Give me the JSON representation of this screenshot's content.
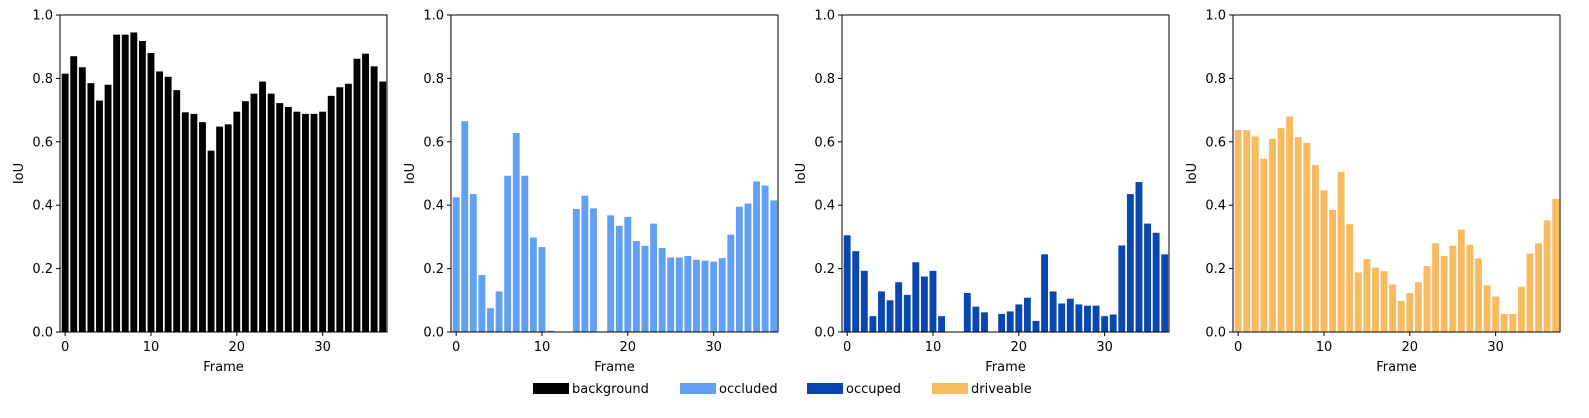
{
  "chart_data": [
    {
      "type": "bar",
      "name": "background",
      "color": "#000000",
      "xlabel": "Frame",
      "ylabel": "IoU",
      "ylim": [
        0,
        1.0
      ],
      "xlim": [
        -0.6,
        37.5
      ],
      "xticks": [
        "0",
        "10",
        "20",
        "30"
      ],
      "yticks": [
        "0.0",
        "0.2",
        "0.4",
        "0.6",
        "0.8",
        "1.0"
      ],
      "x": [
        0,
        1,
        2,
        3,
        4,
        5,
        6,
        7,
        8,
        9,
        10,
        11,
        12,
        13,
        14,
        15,
        16,
        17,
        18,
        19,
        20,
        21,
        22,
        23,
        24,
        25,
        26,
        27,
        28,
        29,
        30,
        31,
        32,
        33,
        34,
        35,
        36,
        37
      ],
      "values": [
        0.815,
        0.87,
        0.835,
        0.785,
        0.73,
        0.78,
        0.938,
        0.938,
        0.945,
        0.918,
        0.88,
        0.822,
        0.805,
        0.763,
        0.693,
        0.688,
        0.662,
        0.572,
        0.648,
        0.655,
        0.695,
        0.728,
        0.752,
        0.79,
        0.752,
        0.722,
        0.71,
        0.695,
        0.688,
        0.688,
        0.695,
        0.745,
        0.772,
        0.783,
        0.862,
        0.878,
        0.838,
        0.79
      ]
    },
    {
      "type": "bar",
      "name": "occluded",
      "color": "#62a0f5",
      "xlabel": "Frame",
      "ylabel": "IoU",
      "ylim": [
        0,
        1.0
      ],
      "xlim": [
        -0.6,
        37.5
      ],
      "xticks": [
        "0",
        "10",
        "20",
        "30"
      ],
      "yticks": [
        "0.0",
        "0.2",
        "0.4",
        "0.6",
        "0.8",
        "1.0"
      ],
      "x": [
        0,
        1,
        2,
        3,
        4,
        5,
        6,
        7,
        8,
        9,
        10,
        11,
        12,
        13,
        14,
        15,
        16,
        17,
        18,
        19,
        20,
        21,
        22,
        23,
        24,
        25,
        26,
        27,
        28,
        29,
        30,
        31,
        32,
        33,
        34,
        35,
        36,
        37
      ],
      "values": [
        0.425,
        0.665,
        0.435,
        0.18,
        0.075,
        0.128,
        0.493,
        0.628,
        0.493,
        0.298,
        0.268,
        0.004,
        0,
        0,
        0.388,
        0.43,
        0.39,
        0,
        0.368,
        0.335,
        0.363,
        0.287,
        0.272,
        0.342,
        0.265,
        0.235,
        0.235,
        0.24,
        0.228,
        0.225,
        0.222,
        0.233,
        0.307,
        0.395,
        0.405,
        0.475,
        0.462,
        0.415
      ]
    },
    {
      "type": "bar",
      "name": "occuped",
      "color": "#0a46b0",
      "xlabel": "Frame",
      "ylabel": "IoU",
      "ylim": [
        0,
        1.0
      ],
      "xlim": [
        -0.6,
        37.5
      ],
      "xticks": [
        "0",
        "10",
        "20",
        "30"
      ],
      "yticks": [
        "0.0",
        "0.2",
        "0.4",
        "0.6",
        "0.8",
        "1.0"
      ],
      "x": [
        0,
        1,
        2,
        3,
        4,
        5,
        6,
        7,
        8,
        9,
        10,
        11,
        12,
        13,
        14,
        15,
        16,
        17,
        18,
        19,
        20,
        21,
        22,
        23,
        24,
        25,
        26,
        27,
        28,
        29,
        30,
        31,
        32,
        33,
        34,
        35,
        36,
        37
      ],
      "values": [
        0.305,
        0.255,
        0.193,
        0.05,
        0.128,
        0.1,
        0.157,
        0.117,
        0.22,
        0.175,
        0.193,
        0.05,
        0,
        0,
        0.123,
        0.08,
        0.062,
        0,
        0.057,
        0.065,
        0.087,
        0.108,
        0.035,
        0.245,
        0.128,
        0.09,
        0.105,
        0.087,
        0.083,
        0.083,
        0.05,
        0.055,
        0.273,
        0.435,
        0.473,
        0.342,
        0.313,
        0.245
      ]
    },
    {
      "type": "bar",
      "name": "driveable",
      "color": "#f8bb60",
      "xlabel": "Frame",
      "ylabel": "IoU",
      "ylim": [
        0,
        1.0
      ],
      "xlim": [
        -0.6,
        37.5
      ],
      "xticks": [
        "0",
        "10",
        "20",
        "30"
      ],
      "yticks": [
        "0.0",
        "0.2",
        "0.4",
        "0.6",
        "0.8",
        "1.0"
      ],
      "x": [
        0,
        1,
        2,
        3,
        4,
        5,
        6,
        7,
        8,
        9,
        10,
        11,
        12,
        13,
        14,
        15,
        16,
        17,
        18,
        19,
        20,
        21,
        22,
        23,
        24,
        25,
        26,
        27,
        28,
        29,
        30,
        31,
        32,
        33,
        34,
        35,
        36,
        37
      ],
      "values": [
        0.637,
        0.637,
        0.617,
        0.547,
        0.61,
        0.643,
        0.68,
        0.615,
        0.597,
        0.527,
        0.447,
        0.385,
        0.505,
        0.34,
        0.188,
        0.23,
        0.203,
        0.192,
        0.15,
        0.098,
        0.123,
        0.157,
        0.208,
        0.28,
        0.24,
        0.272,
        0.323,
        0.275,
        0.232,
        0.147,
        0.112,
        0.057,
        0.057,
        0.143,
        0.247,
        0.28,
        0.352,
        0.42
      ]
    }
  ],
  "legend": {
    "placement": "bottom-center",
    "items": [
      {
        "label": "background",
        "color": "#000000"
      },
      {
        "label": "occluded",
        "color": "#62a0f5"
      },
      {
        "label": "occuped",
        "color": "#0a46b0"
      },
      {
        "label": "driveable",
        "color": "#f8bb60"
      }
    ]
  }
}
